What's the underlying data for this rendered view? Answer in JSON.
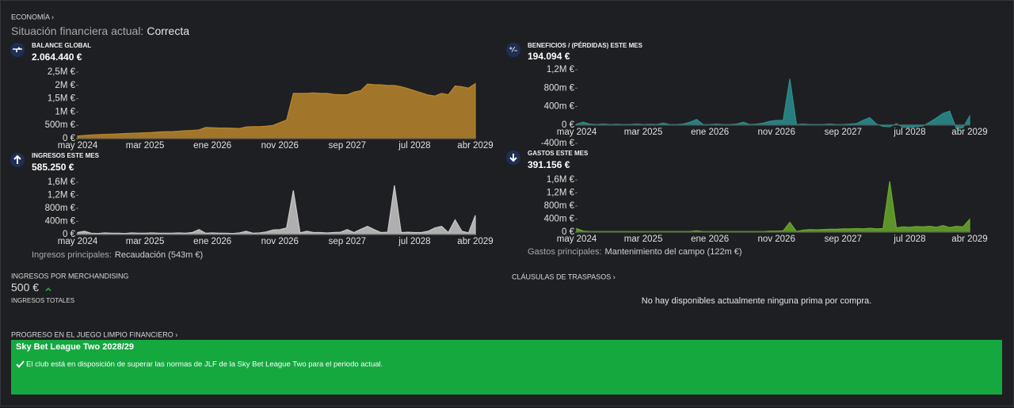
{
  "header": {
    "section": "ECONOMÍA ›",
    "status_label": "Situación financiera actual:",
    "status_value": "Correcta"
  },
  "chart_data": [
    {
      "type": "area",
      "title": "BALANCE GLOBAL",
      "value": "2.064.440 €",
      "color": "#b8862b",
      "x": [
        "may 2024",
        "jun 2024",
        "jul 2024",
        "ago 2024",
        "sep 2024",
        "oct 2024",
        "nov 2024",
        "dic 2024",
        "ene 2025",
        "feb 2025",
        "mar 2025",
        "abr 2025",
        "may 2025",
        "jun 2025",
        "jul 2025",
        "ago 2025",
        "sep 2025",
        "oct 2025",
        "nov 2025",
        "dic 2025",
        "ene 2026",
        "feb 2026",
        "mar 2026",
        "abr 2026",
        "may 2026",
        "jun 2026",
        "jul 2026",
        "ago 2026",
        "sep 2026",
        "oct 2026",
        "nov 2026",
        "dic 2026",
        "ene 2027",
        "feb 2027",
        "mar 2027",
        "abr 2027",
        "may 2027",
        "jun 2027",
        "jul 2027",
        "ago 2027",
        "sep 2027",
        "oct 2027",
        "nov 2027",
        "dic 2027",
        "ene 2028",
        "feb 2028",
        "mar 2028",
        "abr 2028",
        "may 2028",
        "jun 2028",
        "jul 2028",
        "ago 2028",
        "sep 2028",
        "oct 2028",
        "nov 2028",
        "dic 2028",
        "ene 2029",
        "feb 2029",
        "mar 2029",
        "abr 2029"
      ],
      "values": [
        100000,
        120000,
        140000,
        150000,
        160000,
        170000,
        180000,
        190000,
        200000,
        210000,
        220000,
        230000,
        250000,
        260000,
        260000,
        280000,
        300000,
        310000,
        330000,
        420000,
        410000,
        400000,
        400000,
        390000,
        380000,
        440000,
        450000,
        450000,
        470000,
        500000,
        600000,
        700000,
        1700000,
        1700000,
        1700000,
        1720000,
        1700000,
        1700000,
        1660000,
        1650000,
        1650000,
        1750000,
        1800000,
        2050000,
        2030000,
        2020000,
        2000000,
        2000000,
        1950000,
        1880000,
        1800000,
        1720000,
        1640000,
        1600000,
        1700000,
        1650000,
        1980000,
        1950000,
        1900000,
        2064440
      ],
      "xticks": [
        "may 2024",
        "mar 2025",
        "ene 2026",
        "nov 2026",
        "sep 2027",
        "jul 2028",
        "abr 2029"
      ],
      "ylim": [
        0,
        2500000
      ],
      "yticks": [
        {
          "value": 0,
          "label": "0 €"
        },
        {
          "value": 500000,
          "label": "500m €"
        },
        {
          "value": 1000000,
          "label": "1M €"
        },
        {
          "value": 1500000,
          "label": "1,5M €"
        },
        {
          "value": 2000000,
          "label": "2M €"
        },
        {
          "value": 2500000,
          "label": "2,5M €"
        }
      ]
    },
    {
      "type": "area",
      "title": "BENEFICIOS / (PÉRDIDAS) ESTE MES",
      "value": "194.094 €",
      "color": "#2a8f8f",
      "x": [
        "may 2024",
        "jun 2024",
        "jul 2024",
        "ago 2024",
        "sep 2024",
        "oct 2024",
        "nov 2024",
        "dic 2024",
        "ene 2025",
        "feb 2025",
        "mar 2025",
        "abr 2025",
        "may 2025",
        "jun 2025",
        "jul 2025",
        "ago 2025",
        "sep 2025",
        "oct 2025",
        "nov 2025",
        "dic 2025",
        "ene 2026",
        "feb 2026",
        "mar 2026",
        "abr 2026",
        "may 2026",
        "jun 2026",
        "jul 2026",
        "ago 2026",
        "sep 2026",
        "oct 2026",
        "nov 2026",
        "dic 2026",
        "ene 2027",
        "feb 2027",
        "mar 2027",
        "abr 2027",
        "may 2027",
        "jun 2027",
        "jul 2027",
        "ago 2027",
        "sep 2027",
        "oct 2027",
        "nov 2027",
        "dic 2027",
        "ene 2028",
        "feb 2028",
        "mar 2028",
        "abr 2028",
        "may 2028",
        "jun 2028",
        "jul 2028",
        "ago 2028",
        "sep 2028",
        "oct 2028",
        "nov 2028",
        "dic 2028",
        "ene 2029",
        "feb 2029",
        "mar 2029",
        "abr 2029"
      ],
      "values": [
        20000,
        60000,
        20000,
        10000,
        20000,
        10000,
        15000,
        10000,
        10000,
        20000,
        10000,
        15000,
        10000,
        40000,
        10000,
        10000,
        20000,
        60000,
        120000,
        10000,
        10000,
        20000,
        10000,
        10000,
        20000,
        60000,
        10000,
        20000,
        40000,
        80000,
        100000,
        100000,
        1000000,
        10000,
        20000,
        10000,
        10000,
        10000,
        20000,
        10000,
        10000,
        20000,
        30000,
        100000,
        160000,
        20000,
        -30000,
        -40000,
        30000,
        -50000,
        -50000,
        -40000,
        -20000,
        60000,
        150000,
        250000,
        300000,
        -80000,
        -60000,
        194094
      ],
      "xticks": [
        "may 2024",
        "mar 2025",
        "ene 2026",
        "nov 2026",
        "sep 2027",
        "jul 2028",
        "abr 2029"
      ],
      "ylim": [
        -400000,
        1200000
      ],
      "yticks": [
        {
          "value": -400000,
          "label": "-400m €"
        },
        {
          "value": 0,
          "label": "0 €"
        },
        {
          "value": 400000,
          "label": "400m €"
        },
        {
          "value": 800000,
          "label": "800m €"
        },
        {
          "value": 1200000,
          "label": "1,2M €"
        }
      ]
    },
    {
      "type": "area",
      "title": "INGRESOS ESTE MES",
      "value": "585.250 €",
      "color": "#c9c9c9",
      "x": [
        "may 2024",
        "jun 2024",
        "jul 2024",
        "ago 2024",
        "sep 2024",
        "oct 2024",
        "nov 2024",
        "dic 2024",
        "ene 2025",
        "feb 2025",
        "mar 2025",
        "abr 2025",
        "may 2025",
        "jun 2025",
        "jul 2025",
        "ago 2025",
        "sep 2025",
        "oct 2025",
        "nov 2025",
        "dic 2025",
        "ene 2026",
        "feb 2026",
        "mar 2026",
        "abr 2026",
        "may 2026",
        "jun 2026",
        "jul 2026",
        "ago 2026",
        "sep 2026",
        "oct 2026",
        "nov 2026",
        "dic 2026",
        "ene 2027",
        "feb 2027",
        "mar 2027",
        "abr 2027",
        "may 2027",
        "jun 2027",
        "jul 2027",
        "ago 2027",
        "sep 2027",
        "oct 2027",
        "nov 2027",
        "dic 2027",
        "ene 2028",
        "feb 2028",
        "mar 2028",
        "abr 2028",
        "may 2028",
        "jun 2028",
        "jul 2028",
        "ago 2028",
        "sep 2028",
        "oct 2028",
        "nov 2028",
        "dic 2028",
        "ene 2029",
        "feb 2029",
        "mar 2029",
        "abr 2029"
      ],
      "values": [
        60000,
        100000,
        40000,
        30000,
        50000,
        40000,
        40000,
        30000,
        50000,
        40000,
        40000,
        50000,
        40000,
        40000,
        40000,
        50000,
        40000,
        60000,
        150000,
        40000,
        50000,
        40000,
        40000,
        30000,
        50000,
        100000,
        40000,
        50000,
        80000,
        140000,
        150000,
        200000,
        1350000,
        50000,
        100000,
        60000,
        60000,
        50000,
        60000,
        70000,
        150000,
        60000,
        160000,
        250000,
        150000,
        60000,
        70000,
        1500000,
        60000,
        70000,
        60000,
        60000,
        100000,
        200000,
        250000,
        60000,
        450000,
        100000,
        50000,
        585250
      ],
      "xticks": [
        "may 2024",
        "mar 2025",
        "ene 2026",
        "nov 2026",
        "sep 2027",
        "jul 2028",
        "abr 2029"
      ],
      "ylim": [
        0,
        1600000
      ],
      "yticks": [
        {
          "value": 0,
          "label": "0 €"
        },
        {
          "value": 400000,
          "label": "400m €"
        },
        {
          "value": 800000,
          "label": "800m €"
        },
        {
          "value": 1200000,
          "label": "1,2M €"
        },
        {
          "value": 1600000,
          "label": "1,6M €"
        }
      ],
      "footer_label": "Ingresos principales:",
      "footer_value": "Recaudación (543m €)"
    },
    {
      "type": "area",
      "title": "GASTOS ESTE MES",
      "value": "391.156 €",
      "color": "#6aa82e",
      "x": [
        "may 2024",
        "jun 2024",
        "jul 2024",
        "ago 2024",
        "sep 2024",
        "oct 2024",
        "nov 2024",
        "dic 2024",
        "ene 2025",
        "feb 2025",
        "mar 2025",
        "abr 2025",
        "may 2025",
        "jun 2025",
        "jul 2025",
        "ago 2025",
        "sep 2025",
        "oct 2025",
        "nov 2025",
        "dic 2025",
        "ene 2026",
        "feb 2026",
        "mar 2026",
        "abr 2026",
        "may 2026",
        "jun 2026",
        "jul 2026",
        "ago 2026",
        "sep 2026",
        "oct 2026",
        "nov 2026",
        "dic 2026",
        "ene 2027",
        "feb 2027",
        "mar 2027",
        "abr 2027",
        "may 2027",
        "jun 2027",
        "jul 2027",
        "ago 2027",
        "sep 2027",
        "oct 2027",
        "nov 2027",
        "dic 2027",
        "ene 2028",
        "feb 2028",
        "mar 2028",
        "abr 2028",
        "may 2028",
        "jun 2028",
        "jul 2028",
        "ago 2028",
        "sep 2028",
        "oct 2028",
        "nov 2028",
        "dic 2028",
        "ene 2029",
        "feb 2029",
        "mar 2029",
        "abr 2029"
      ],
      "values": [
        110000,
        30000,
        20000,
        20000,
        20000,
        20000,
        20000,
        20000,
        20000,
        20000,
        20000,
        20000,
        20000,
        20000,
        20000,
        20000,
        20000,
        20000,
        40000,
        20000,
        20000,
        20000,
        20000,
        20000,
        20000,
        20000,
        20000,
        20000,
        20000,
        30000,
        30000,
        40000,
        300000,
        20000,
        60000,
        80000,
        70000,
        80000,
        90000,
        90000,
        100000,
        100000,
        110000,
        100000,
        120000,
        100000,
        110000,
        1550000,
        130000,
        160000,
        150000,
        170000,
        160000,
        180000,
        150000,
        200000,
        140000,
        180000,
        160000,
        391156
      ],
      "xticks": [
        "may 2024",
        "mar 2025",
        "ene 2026",
        "nov 2026",
        "sep 2027",
        "jul 2028",
        "abr 2029"
      ],
      "ylim": [
        0,
        1600000
      ],
      "yticks": [
        {
          "value": 0,
          "label": "0 €"
        },
        {
          "value": 400000,
          "label": "400m €"
        },
        {
          "value": 800000,
          "label": "800m €"
        },
        {
          "value": 1200000,
          "label": "1,2M €"
        },
        {
          "value": 1600000,
          "label": "1,6M €"
        }
      ],
      "footer_label": "Gastos principales:",
      "footer_value": "Mantenimiento del campo (122m €)"
    }
  ],
  "merchandising": {
    "title": "INGRESOS POR MERCHANDISING",
    "value": "500 €",
    "subtitle": "INGRESOS TOTALES"
  },
  "transfers": {
    "title": "CLÁUSULAS DE TRASPASOS ›",
    "message": "No hay disponibles actualmente ninguna prima por compra."
  },
  "ffp": {
    "title": "PROGRESO EN EL JUEGO LIMPIO FINANCIERO ›",
    "league": "Sky Bet League Two 2028/29",
    "message": "El club está en disposición de superar las normas de JLF de la Sky Bet League Two para el periodo actual."
  }
}
